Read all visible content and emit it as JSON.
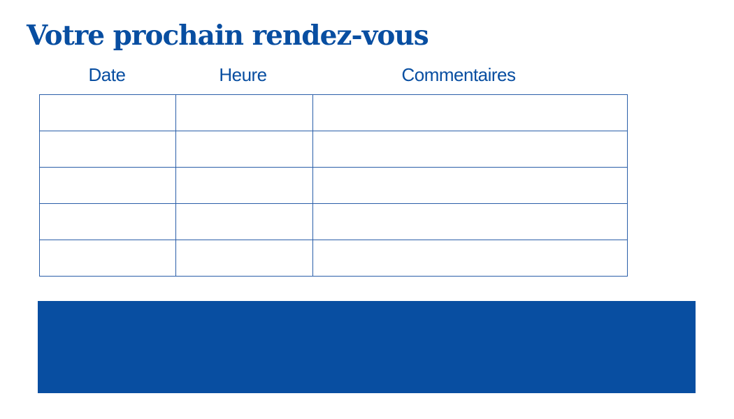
{
  "title": "Votre prochain rendez-vous",
  "table": {
    "columns": [
      "Date",
      "Heure",
      "Commentaires"
    ],
    "rows": [
      [
        "",
        "",
        ""
      ],
      [
        "",
        "",
        ""
      ],
      [
        "",
        "",
        ""
      ],
      [
        "",
        "",
        ""
      ],
      [
        "",
        "",
        ""
      ]
    ]
  },
  "colors": {
    "accent": "#084ea1"
  }
}
